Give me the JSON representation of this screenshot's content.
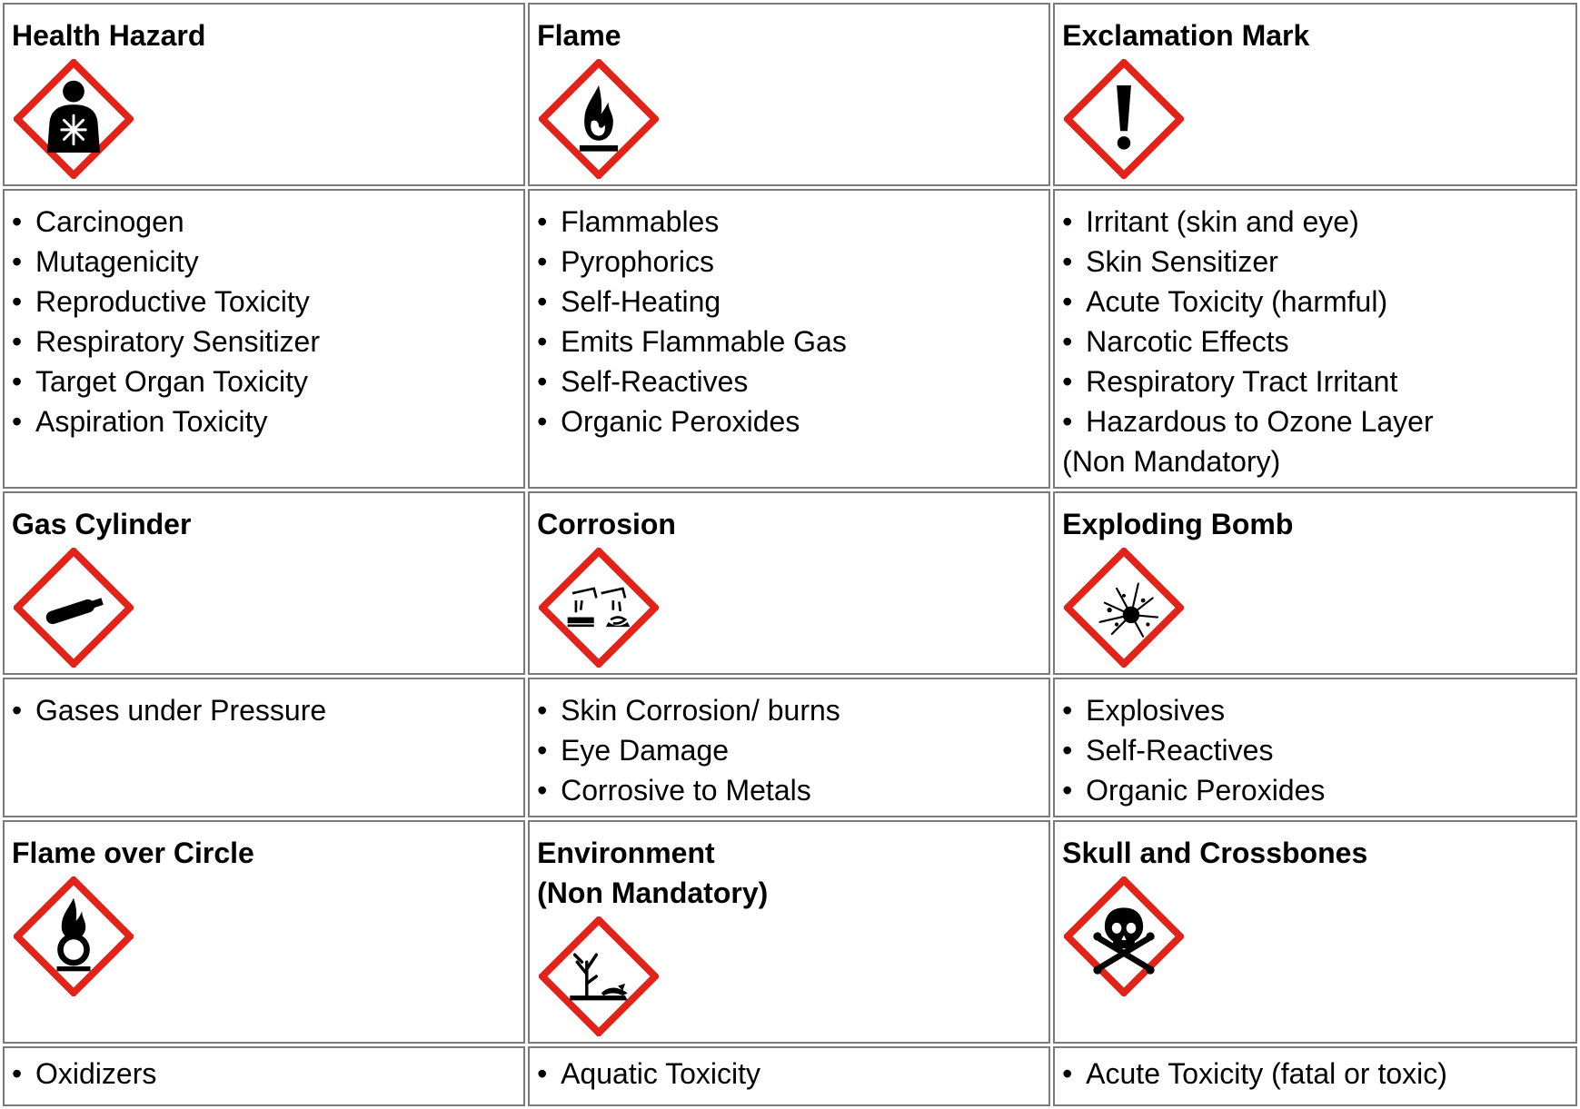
{
  "colors": {
    "border": "#7a7a7a",
    "diamond_red": "#e2231a",
    "ink": "#000000"
  },
  "groups": [
    {
      "symbols": [
        {
          "title": "Health Hazard",
          "icon": "health-hazard-icon",
          "hazards": [
            {
              "text": "Carcinogen",
              "bullet": true
            },
            {
              "text": "Mutagenicity",
              "bullet": true
            },
            {
              "text": "Reproductive Toxicity",
              "bullet": true
            },
            {
              "text": "Respiratory Sensitizer",
              "bullet": true
            },
            {
              "text": "Target Organ Toxicity",
              "bullet": true
            },
            {
              "text": "Aspiration Toxicity",
              "bullet": true
            }
          ]
        },
        {
          "title": "Flame",
          "icon": "flame-icon",
          "hazards": [
            {
              "text": "Flammables",
              "bullet": true
            },
            {
              "text": "Pyrophorics",
              "bullet": true
            },
            {
              "text": "Self-Heating",
              "bullet": true
            },
            {
              "text": "Emits Flammable Gas",
              "bullet": true
            },
            {
              "text": "Self-Reactives",
              "bullet": true
            },
            {
              "text": "Organic Peroxides",
              "bullet": true
            }
          ]
        },
        {
          "title": "Exclamation Mark",
          "icon": "exclamation-mark-icon",
          "hazards": [
            {
              "text": "Irritant (skin and eye)",
              "bullet": true
            },
            {
              "text": "Skin Sensitizer",
              "bullet": true
            },
            {
              "text": "Acute Toxicity (harmful)",
              "bullet": true
            },
            {
              "text": "Narcotic Effects",
              "bullet": true
            },
            {
              "text": "Respiratory Tract Irritant",
              "bullet": true
            },
            {
              "text": "Hazardous to Ozone Layer",
              "bullet": true
            },
            {
              "text": "(Non Mandatory)",
              "bullet": false
            }
          ]
        }
      ]
    },
    {
      "symbols": [
        {
          "title": "Gas Cylinder",
          "icon": "gas-cylinder-icon",
          "hazards": [
            {
              "text": "Gases under Pressure",
              "bullet": true
            }
          ]
        },
        {
          "title": "Corrosion",
          "icon": "corrosion-icon",
          "hazards": [
            {
              "text": "Skin Corrosion/ burns",
              "bullet": true
            },
            {
              "text": "Eye Damage",
              "bullet": true
            },
            {
              "text": "Corrosive to Metals",
              "bullet": true
            }
          ]
        },
        {
          "title": "Exploding Bomb",
          "icon": "exploding-bomb-icon",
          "hazards": [
            {
              "text": "Explosives",
              "bullet": true
            },
            {
              "text": "Self-Reactives",
              "bullet": true
            },
            {
              "text": "Organic Peroxides",
              "bullet": true
            }
          ]
        }
      ]
    },
    {
      "symbols": [
        {
          "title": "Flame over Circle",
          "icon": "flame-over-circle-icon",
          "hazards": [
            {
              "text": "Oxidizers",
              "bullet": true
            }
          ]
        },
        {
          "title": "Environment\n(Non Mandatory)",
          "icon": "environment-icon",
          "hazards": [
            {
              "text": "Aquatic Toxicity",
              "bullet": true
            }
          ]
        },
        {
          "title": "Skull and Crossbones",
          "icon": "skull-and-crossbones-icon",
          "hazards": [
            {
              "text": "Acute Toxicity (fatal or toxic)",
              "bullet": true
            }
          ]
        }
      ]
    }
  ]
}
